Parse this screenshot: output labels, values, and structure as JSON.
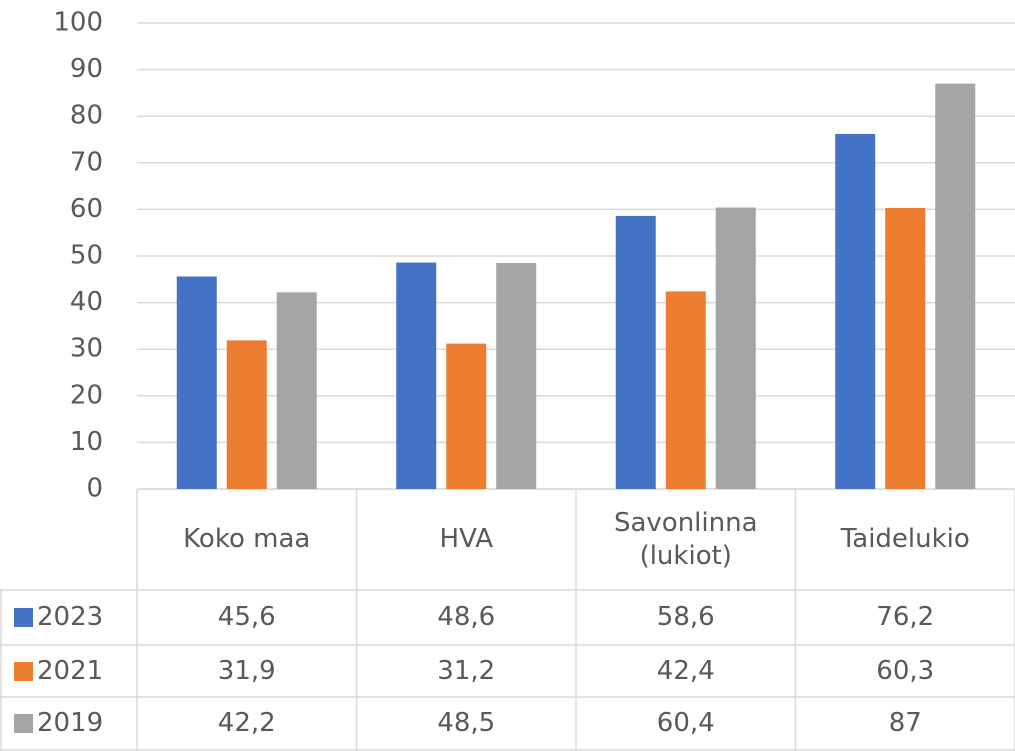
{
  "chart_data": {
    "type": "bar",
    "categories": [
      "Koko maa",
      "HVA",
      "Savonlinna (lukiot)",
      "Taidelukio"
    ],
    "series": [
      {
        "name": "2023",
        "color": "#4472c4",
        "values": [
          45.6,
          48.6,
          58.6,
          76.2
        ],
        "value_labels": [
          "45,6",
          "48,6",
          "58,6",
          "76,2"
        ]
      },
      {
        "name": "2021",
        "color": "#ed7d31",
        "values": [
          31.9,
          31.2,
          42.4,
          60.3
        ],
        "value_labels": [
          "31,9",
          "31,2",
          "42,4",
          "60,3"
        ]
      },
      {
        "name": "2019",
        "color": "#a5a5a5",
        "values": [
          42.2,
          48.5,
          60.4,
          87
        ],
        "value_labels": [
          "42,2",
          "48,5",
          "60,4",
          "87"
        ]
      }
    ],
    "ylim": [
      0,
      100
    ],
    "yticks": [
      0,
      10,
      20,
      30,
      40,
      50,
      60,
      70,
      80,
      90,
      100
    ],
    "grid": true
  }
}
